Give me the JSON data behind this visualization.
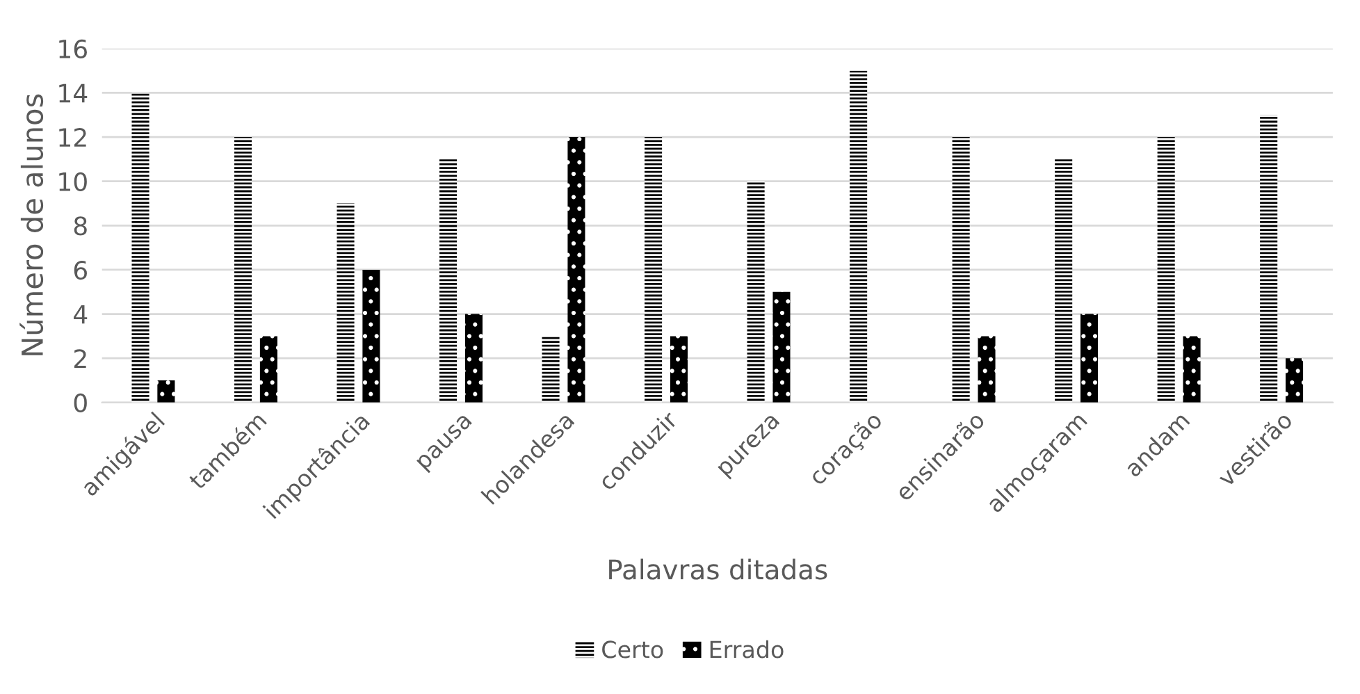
{
  "chart_data": {
    "type": "bar",
    "xlabel": "Palavras ditadas",
    "ylabel": "Número de alunos",
    "categories": [
      "amigável",
      "também",
      "importância",
      "pausa",
      "holandesa",
      "conduzir",
      "pureza",
      "coração",
      "ensinarão",
      "almoçaram",
      "andam",
      "vestirão"
    ],
    "series": [
      {
        "name": "Certo",
        "color": "#000000",
        "values": [
          14,
          12,
          9,
          11,
          3,
          12,
          10,
          15,
          12,
          11,
          12,
          13
        ]
      },
      {
        "name": "Errado",
        "color": "#000000",
        "values": [
          1,
          3,
          6,
          4,
          12,
          3,
          5,
          0,
          3,
          4,
          3,
          2
        ]
      }
    ],
    "ylim": [
      0,
      16
    ],
    "yticks": [
      0,
      2,
      4,
      6,
      8,
      10,
      12,
      14,
      16
    ],
    "grid": "y",
    "legend": "bottom"
  }
}
